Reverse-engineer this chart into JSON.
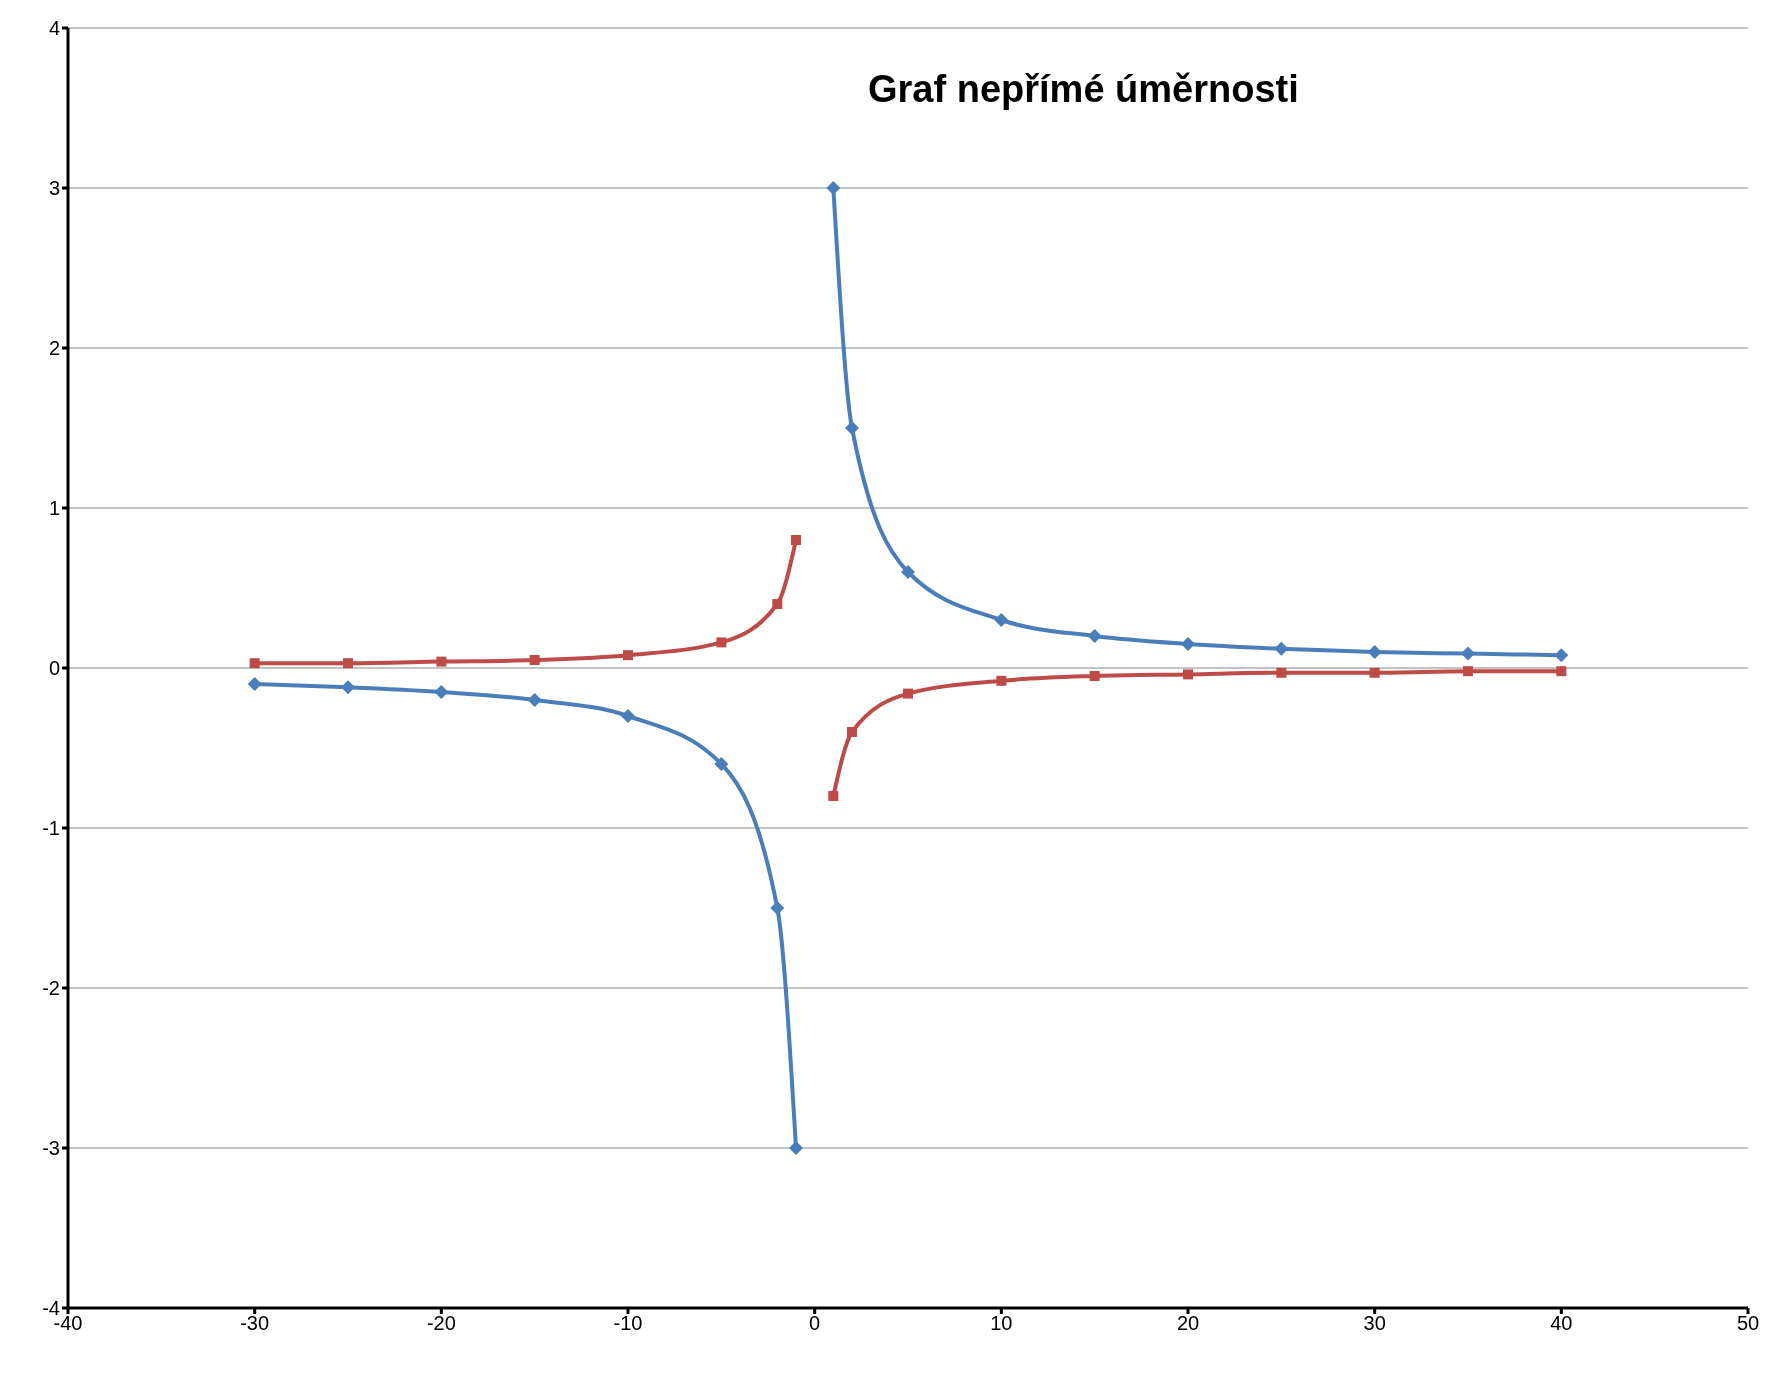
{
  "chart_data": {
    "type": "line",
    "title": "Graf nepřímé úměrnosti",
    "x": [
      -30,
      -25,
      -20,
      -15,
      -10,
      -5,
      -2,
      -1,
      0,
      1,
      2,
      5,
      10,
      15,
      20,
      25,
      30,
      35,
      40
    ],
    "series": [
      {
        "color": "#4a7ebb",
        "marker": "diamond",
        "values": [
          -0.1,
          -0.12,
          -0.15,
          -0.2,
          -0.3,
          -0.6,
          -1.5,
          -3,
          null,
          3,
          1.5,
          0.6,
          0.3,
          0.2,
          0.15,
          0.12,
          0.1,
          0.09,
          0.08
        ]
      },
      {
        "color": "#be4b48",
        "marker": "square",
        "values": [
          0.03,
          0.03,
          0.04,
          0.05,
          0.08,
          0.16,
          0.4,
          0.8,
          null,
          -0.8,
          -0.4,
          -0.16,
          -0.08,
          -0.05,
          -0.04,
          -0.03,
          -0.03,
          -0.02,
          -0.02
        ]
      }
    ],
    "xlim": [
      -40,
      50
    ],
    "xticks": [
      -40,
      -30,
      -20,
      -10,
      0,
      10,
      20,
      30,
      40,
      50
    ],
    "ylim": [
      -4,
      4
    ],
    "yticks": [
      -4,
      -3,
      -2,
      -1,
      0,
      1,
      2,
      3,
      4
    ],
    "grid": "y",
    "legend": false,
    "line_style": "solid"
  }
}
